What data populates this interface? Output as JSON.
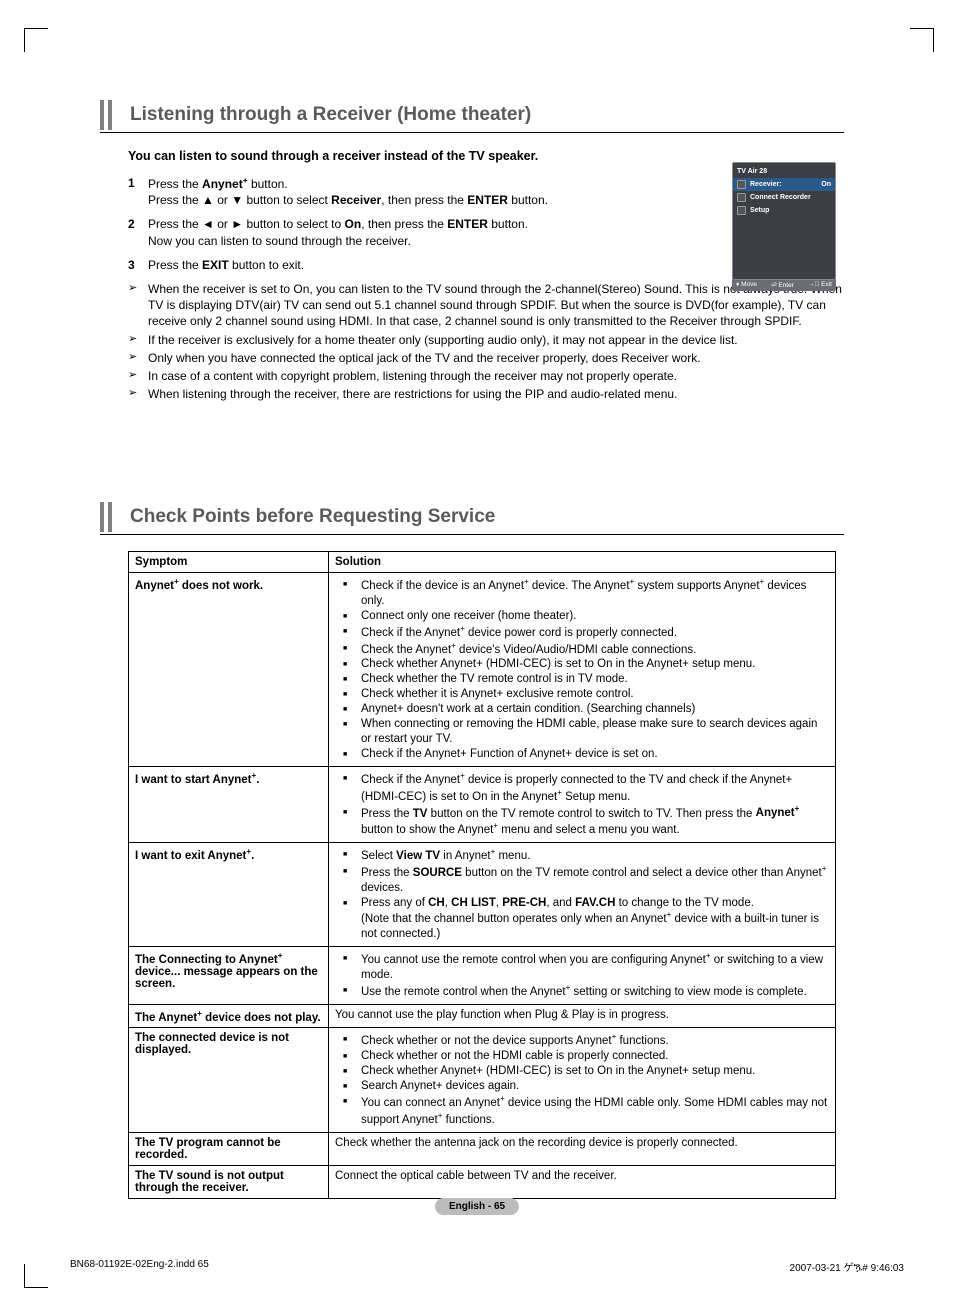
{
  "section1": {
    "title": "Listening through a Receiver (Home theater)",
    "intro": "You can listen to sound through a receiver instead of the TV speaker.",
    "steps": [
      {
        "num": "1",
        "html": "Press the <span class='b'>Anynet<sup>+</sup></span> button.<br>Press the ▲ or ▼ button to select <span class='b'>Receiver</span>, then press the <span class='b'>ENTER</span> button."
      },
      {
        "num": "2",
        "html": "Press the ◄ or ► button to select to <span class='b'>On</span>, then press the <span class='b'>ENTER</span> button.<br>Now you can listen to sound through the receiver."
      },
      {
        "num": "3",
        "html": "Press the <span class='b'>EXIT</span> button to exit."
      }
    ],
    "notes": [
      "When the receiver is set to On, you can listen to the TV sound through the 2-channel(Stereo) Sound. This is not always true. When TV is displaying DTV(air) TV can send out 5.1 channel sound through SPDIF. But when the source is DVD(for example), TV can receive only 2 channel sound using HDMI. In that case, 2 channel sound is only transmitted to the Receiver through SPDIF.",
      "If the receiver is exclusively for a home theater only (supporting audio only), it may not appear in the device list.",
      "Only when you have connected the optical jack of the TV and the receiver properly, does Receiver work.",
      "In case of a content with copyright problem, listening through the receiver may not properly operate.",
      "When listening through the receiver, there are restrictions for using the PIP and audio-related menu."
    ]
  },
  "osd": {
    "title": "TV Air 28",
    "rows": [
      {
        "label": "Recevier:",
        "value": "On",
        "selected": true
      },
      {
        "label": "Connect Recorder",
        "value": "",
        "selected": false
      },
      {
        "label": "Setup",
        "value": "",
        "selected": false
      }
    ],
    "footer": {
      "move": "Move",
      "enter": "Enter",
      "exit": "Exit"
    },
    "colors": {
      "bg": "#3b3f45",
      "sel": "#2a5a8a",
      "footer": "#6a6e74"
    }
  },
  "section2": {
    "title": "Check Points before Requesting Service",
    "columns": [
      "Symptom",
      "Solution"
    ],
    "rows": [
      {
        "symptom": "Anynet<sup>+</sup> does not work.",
        "solution_items": [
          "Check if the device is an Anynet<sup>+</sup> device. The Anynet<sup>+</sup> system supports Anynet<sup>+</sup> devices only.",
          "Connect only one receiver (home theater).",
          "Check if the Anynet<sup>+</sup> device power cord is properly connected.",
          "Check the Anynet<sup>+</sup> device's Video/Audio/HDMI cable connections.",
          "Check whether Anynet+ (HDMI-CEC) is set to On in the Anynet+ setup menu.",
          "Check whether the TV remote control is in TV mode.",
          "Check whether it is Anynet+ exclusive remote control.",
          "Anynet+ doesn't work at a certain condition. (Searching channels)",
          "When connecting or removing the HDMI cable, please make sure to search devices again or restart your TV.",
          "Check if the Anynet+ Function of Anynet+ device is set on."
        ]
      },
      {
        "symptom": "I want to start Anynet<sup>+</sup>.",
        "solution_items": [
          "Check if the Anynet<sup>+</sup> device is properly connected to the TV and check if the Anynet+ (HDMI-CEC) is set to On in the Anynet<sup>+</sup> Setup menu.",
          "Press the <span class='b'>TV</span> button on the TV remote control to switch to TV. Then press the <span class='b'>Anynet<sup>+</sup></span> button to show the Anynet<sup>+</sup> menu and select a menu you want."
        ]
      },
      {
        "symptom": "I want to exit Anynet<sup>+</sup>.",
        "solution_items": [
          "Select <span class='b'>View TV</span> in Anynet<sup>+</sup> menu.",
          " Press the <span class='b'>SOURCE</span> button on the TV remote control and select a device other than Anynet<sup>+</sup> devices.",
          "Press any of <span class='b'>CH</span>, <span class='b'>CH LIST</span>, <span class='b'>PRE-CH</span>, and <span class='b'>FAV.CH</span> to change to the TV mode.<br>(Note that the channel button operates only when an Anynet<sup>+</sup> device with a built-in tuner is not connected.)"
        ]
      },
      {
        "symptom": "The Connecting to Anynet<sup>+</sup> device... message appears on the screen.",
        "solution_items": [
          "You cannot use the remote control when you are configuring Anynet<sup>+</sup> or switching to a view mode.",
          "Use the remote control when the Anynet<sup>+</sup> setting or switching to view mode is complete."
        ]
      },
      {
        "symptom": "The Anynet<sup>+</sup> device does not play.",
        "solution_plain": "You cannot use the play function when Plug & Play is in progress."
      },
      {
        "symptom": "The connected device is not displayed.",
        "solution_items": [
          "Check whether or not the device supports Anynet<sup>+</sup> functions.",
          "Check whether or not the HDMI cable is properly connected.",
          "Check whether Anynet+ (HDMI-CEC) is set to On in the Anynet+ setup menu.",
          "Search Anynet+ devices again.",
          "You can connect an Anynet<sup>+</sup> device using the HDMI cable only. Some HDMI cables may not support Anynet<sup>+</sup> functions."
        ]
      },
      {
        "symptom": "The TV program cannot be recorded.",
        "solution_plain": "Check whether the antenna jack on the recording device is properly connected."
      },
      {
        "symptom": "The TV sound is not output through the receiver.",
        "solution_plain": "Connect the optical cable between TV and the receiver."
      }
    ]
  },
  "footer": {
    "page_label": "English - 65"
  },
  "meta": {
    "file": "BN68-01192E-02Eng-2.indd    65",
    "timestamp": "2007-03-21    ゲዄ#  9:46:03"
  }
}
